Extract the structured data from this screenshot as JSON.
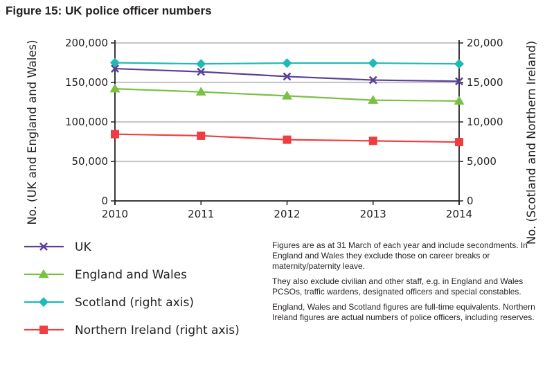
{
  "chart_data": {
    "type": "line",
    "title": "Figure 15: UK police officer numbers",
    "x": [
      "2010",
      "2011",
      "2012",
      "2013",
      "2014"
    ],
    "ylabel_left": "No. (UK and England and Wales)",
    "ylabel_right": "No. (Scotland and Northern Ireland)",
    "ylim_left": [
      0,
      200000
    ],
    "ylim_right": [
      0,
      20000
    ],
    "yticks_left": [
      "0",
      "50,000",
      "100,000",
      "150,000",
      "200,000"
    ],
    "yticks_right": [
      "0",
      "5,000",
      "10,000",
      "15,000",
      "20,000"
    ],
    "grid": true,
    "legend_position": "bottom-left",
    "series": [
      {
        "name": "UK",
        "axis": "left",
        "marker": "x",
        "color": "#5b3f98",
        "values": [
          167500,
          163500,
          157500,
          153000,
          151500
        ]
      },
      {
        "name": "England and Wales",
        "axis": "left",
        "marker": "triangle",
        "color": "#7ac143",
        "values": [
          142000,
          138000,
          133000,
          127500,
          126500
        ]
      },
      {
        "name": "Scotland (right axis)",
        "axis": "right",
        "marker": "diamond",
        "color": "#1ebab5",
        "values": [
          17500,
          17350,
          17450,
          17450,
          17350
        ]
      },
      {
        "name": "Northern Ireland (right axis)",
        "axis": "right",
        "marker": "square",
        "color": "#ee3e42",
        "values": [
          8450,
          8250,
          7750,
          7600,
          7450
        ]
      }
    ]
  },
  "notes": [
    "Figures are as at 31 March of each year and include secondments. In England and Wales they exclude those on career breaks or maternity/paternity leave.",
    "They also exclude civilian and other staff, e.g. in England and Wales PCSOs, traffic wardens, designated officers and special constables.",
    "England, Wales and Scotland figures are full-time equivalents. Northern Ireland figures are actual numbers of police officers, including reserves."
  ]
}
